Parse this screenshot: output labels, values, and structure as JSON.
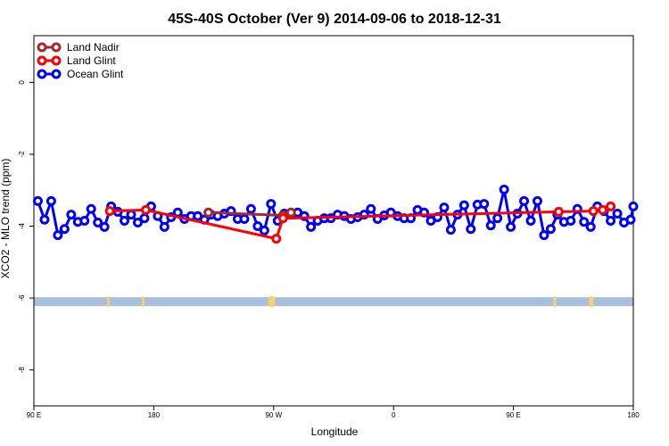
{
  "chart_data": {
    "type": "line",
    "title": "45S-40S October (Ver 9)   2014-09-06 to 2018-12-31",
    "xlabel": "Longitude",
    "ylabel": "XCO2 - MLO trend (ppm)",
    "x_range_label": "90 E to 180 to 90 W to 0 to 90 E to 180",
    "x_ticks": [
      {
        "value": 90,
        "label": "90 E"
      },
      {
        "value": 180,
        "label": "180"
      },
      {
        "value": 270,
        "label": "90 W"
      },
      {
        "value": 360,
        "label": "0"
      },
      {
        "value": 450,
        "label": "90 E"
      },
      {
        "value": 540,
        "label": "180"
      }
    ],
    "y_ticks": [
      {
        "value": 0,
        "label": "0"
      },
      {
        "value": -2,
        "label": "-2"
      },
      {
        "value": -4,
        "label": "-4"
      },
      {
        "value": -6,
        "label": "-6"
      },
      {
        "value": -8,
        "label": "-8"
      }
    ],
    "xlim": [
      90,
      540
    ],
    "ylim": [
      -9,
      1.3
    ],
    "legend_position": "top-left",
    "series": [
      {
        "name": "Land Nadir",
        "color": "#a52a2a",
        "points": [
          [
            221,
            -3.62
          ],
          [
            277,
            -3.7
          ],
          [
            283,
            -3.62
          ]
        ]
      },
      {
        "name": "Land Glint",
        "color": "#ff0000",
        "points": [
          [
            147,
            -3.58
          ],
          [
            174,
            -3.55
          ],
          [
            272,
            -4.35
          ],
          [
            277,
            -3.78
          ],
          [
            484,
            -3.6
          ],
          [
            510,
            -3.58
          ],
          [
            517,
            -3.55
          ],
          [
            523,
            -3.45
          ]
        ]
      },
      {
        "name": "Ocean Glint",
        "color": "#0000ff",
        "points": [
          [
            93,
            -3.3
          ],
          [
            98,
            -3.82
          ],
          [
            103,
            -3.3
          ],
          [
            108,
            -4.25
          ],
          [
            113,
            -4.08
          ],
          [
            118,
            -3.68
          ],
          [
            123,
            -3.88
          ],
          [
            128,
            -3.85
          ],
          [
            133,
            -3.52
          ],
          [
            138,
            -3.9
          ],
          [
            143,
            -4.02
          ],
          [
            148,
            -3.45
          ],
          [
            153,
            -3.6
          ],
          [
            158,
            -3.85
          ],
          [
            163,
            -3.68
          ],
          [
            168,
            -3.9
          ],
          [
            173,
            -3.78
          ],
          [
            178,
            -3.45
          ],
          [
            183,
            -3.72
          ],
          [
            188,
            -4.02
          ],
          [
            193,
            -3.75
          ],
          [
            198,
            -3.62
          ],
          [
            203,
            -3.8
          ],
          [
            208,
            -3.72
          ],
          [
            213,
            -3.72
          ],
          [
            218,
            -3.82
          ],
          [
            223,
            -3.68
          ],
          [
            228,
            -3.72
          ],
          [
            233,
            -3.65
          ],
          [
            238,
            -3.58
          ],
          [
            243,
            -3.8
          ],
          [
            248,
            -3.8
          ],
          [
            253,
            -3.52
          ],
          [
            258,
            -4.0
          ],
          [
            263,
            -4.12
          ],
          [
            268,
            -3.38
          ],
          [
            273,
            -3.85
          ],
          [
            278,
            -3.65
          ],
          [
            283,
            -3.68
          ],
          [
            288,
            -3.62
          ],
          [
            293,
            -3.72
          ],
          [
            298,
            -4.02
          ],
          [
            303,
            -3.85
          ],
          [
            308,
            -3.78
          ],
          [
            313,
            -3.78
          ],
          [
            318,
            -3.68
          ],
          [
            323,
            -3.72
          ],
          [
            328,
            -3.8
          ],
          [
            333,
            -3.75
          ],
          [
            338,
            -3.68
          ],
          [
            343,
            -3.52
          ],
          [
            348,
            -3.8
          ],
          [
            353,
            -3.7
          ],
          [
            358,
            -3.62
          ],
          [
            363,
            -3.72
          ],
          [
            368,
            -3.78
          ],
          [
            373,
            -3.78
          ],
          [
            378,
            -3.55
          ],
          [
            383,
            -3.62
          ],
          [
            388,
            -3.85
          ],
          [
            393,
            -3.75
          ],
          [
            398,
            -3.48
          ],
          [
            403,
            -4.1
          ],
          [
            408,
            -3.68
          ],
          [
            413,
            -3.42
          ],
          [
            418,
            -4.08
          ],
          [
            423,
            -3.4
          ],
          [
            428,
            -3.38
          ],
          [
            433,
            -3.98
          ],
          [
            438,
            -3.78
          ],
          [
            443,
            -2.98
          ],
          [
            448,
            -4.02
          ],
          [
            453,
            -3.65
          ],
          [
            458,
            -3.3
          ],
          [
            463,
            -3.85
          ],
          [
            468,
            -3.3
          ],
          [
            473,
            -4.25
          ],
          [
            478,
            -4.08
          ],
          [
            483,
            -3.68
          ],
          [
            488,
            -3.88
          ],
          [
            493,
            -3.85
          ],
          [
            498,
            -3.52
          ],
          [
            503,
            -3.88
          ],
          [
            508,
            -4.02
          ],
          [
            513,
            -3.45
          ],
          [
            518,
            -3.58
          ],
          [
            523,
            -3.85
          ],
          [
            528,
            -3.65
          ],
          [
            533,
            -3.9
          ],
          [
            538,
            -3.82
          ],
          [
            540,
            -3.45
          ]
        ]
      }
    ],
    "background_band": {
      "y_value": -6.1,
      "ocean_color": "#a8bfe0",
      "land_color": "#f5d36a",
      "land_segments": [
        [
          145,
          147
        ],
        [
          171,
          173
        ],
        [
          266,
          271
        ],
        [
          480,
          482
        ],
        [
          507,
          510
        ]
      ]
    }
  }
}
